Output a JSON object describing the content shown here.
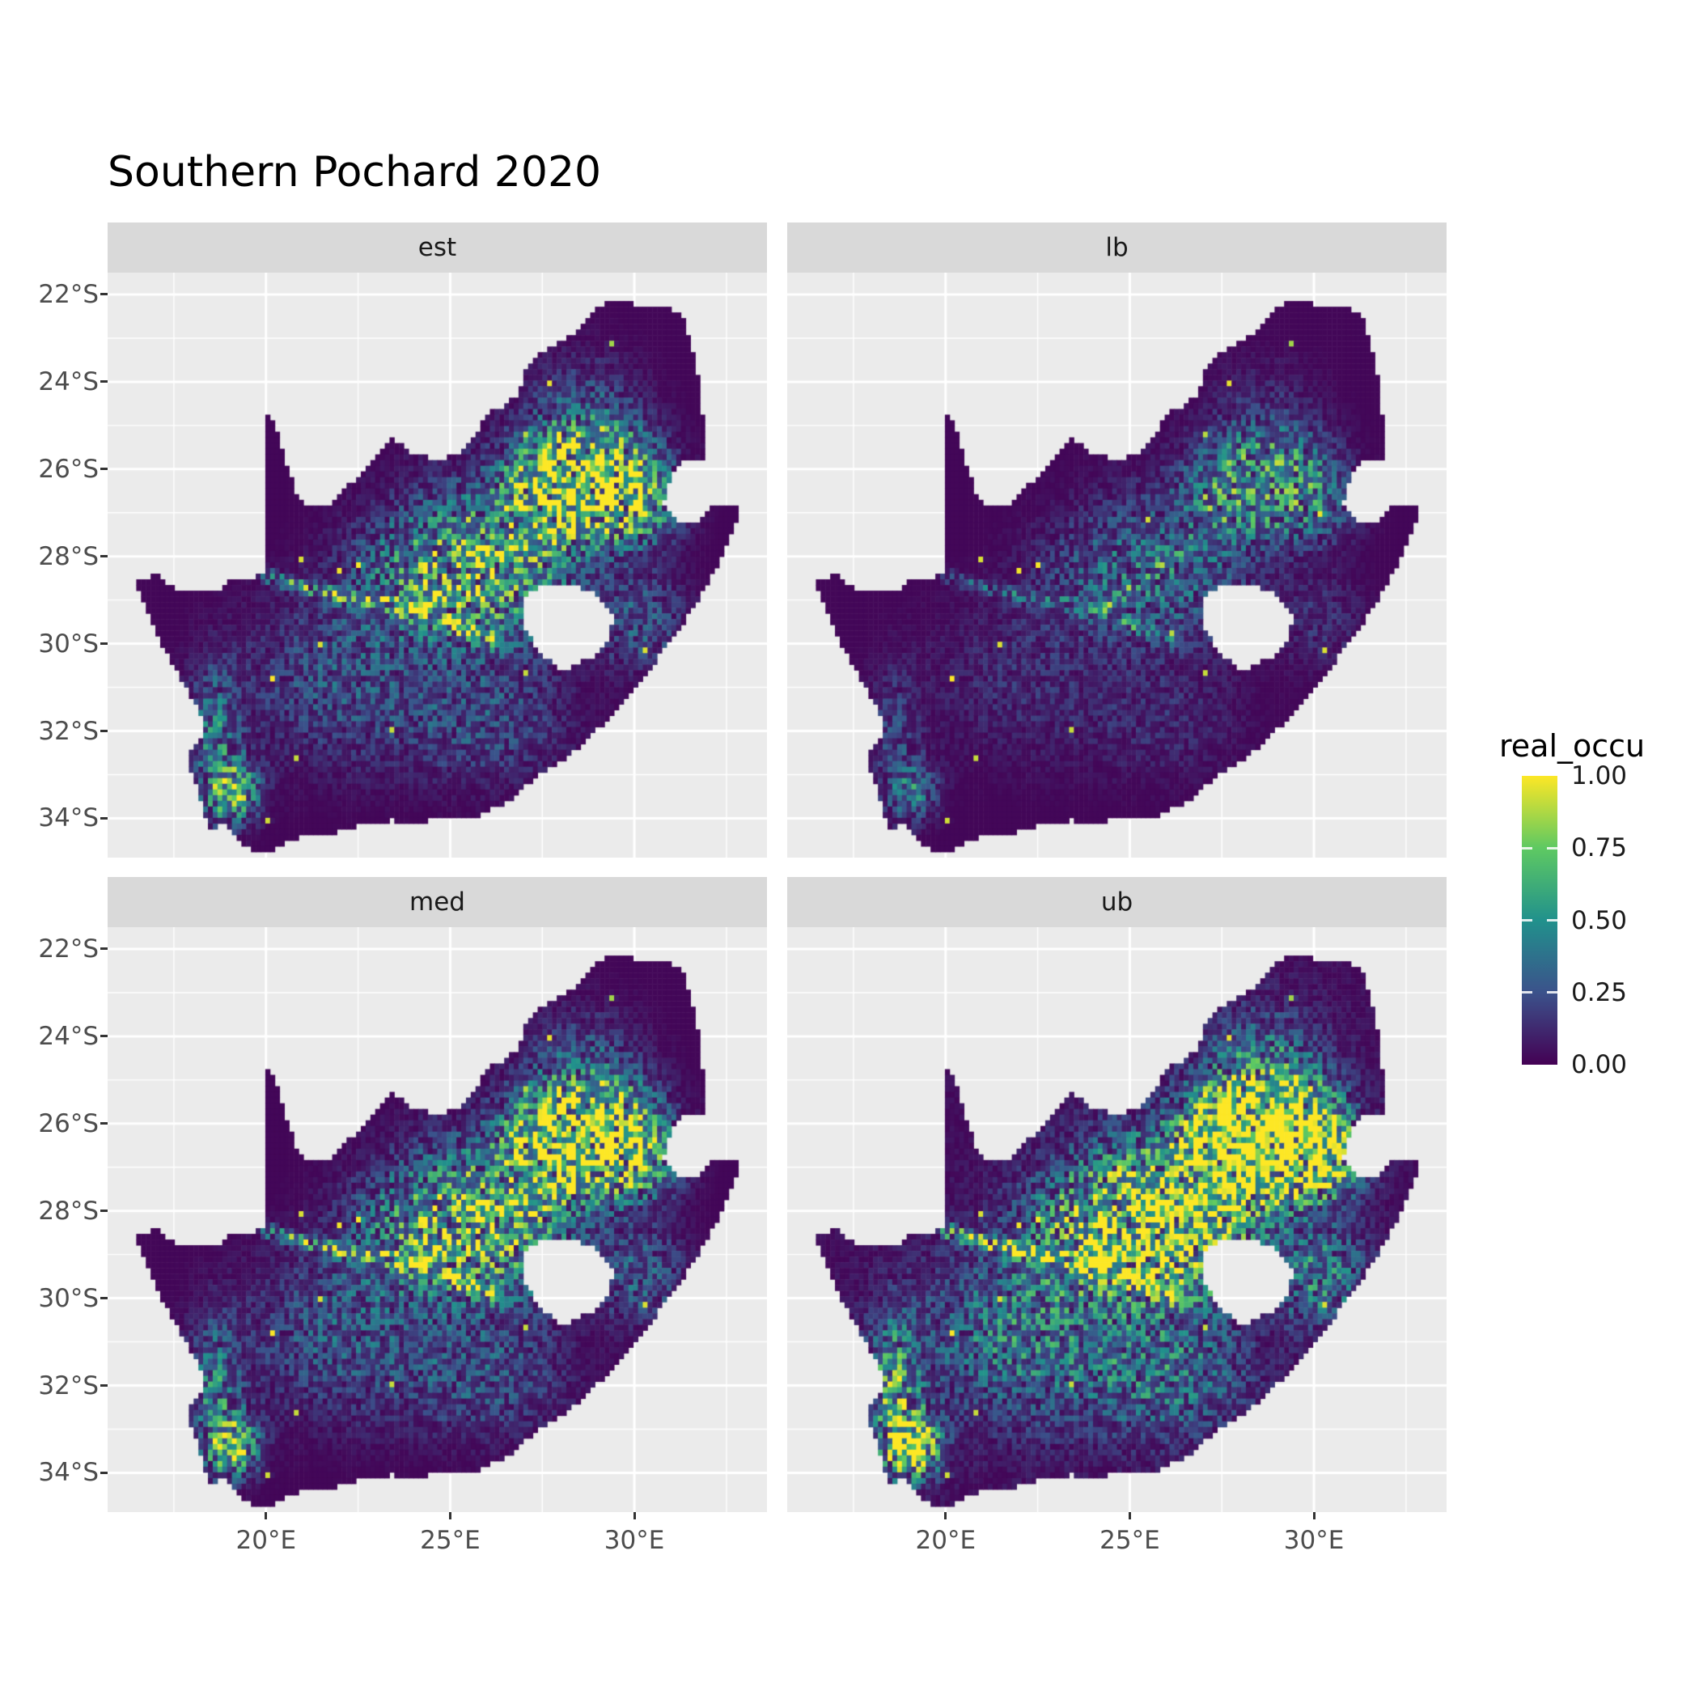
{
  "chart_data": {
    "type": "heatmap",
    "title": "Southern Pochard 2020",
    "facets": [
      {
        "label": "est",
        "scale": 1.0
      },
      {
        "label": "lb",
        "scale": 0.52
      },
      {
        "label": "med",
        "scale": 1.08
      },
      {
        "label": "ub",
        "scale": 1.5,
        "offset": 0.04
      }
    ],
    "x_ticks": [
      {
        "label": "20°E",
        "value": 20
      },
      {
        "label": "25°E",
        "value": 25
      },
      {
        "label": "30°E",
        "value": 30
      }
    ],
    "y_ticks": [
      {
        "label": "22°S",
        "value": -22
      },
      {
        "label": "24°S",
        "value": -24
      },
      {
        "label": "26°S",
        "value": -26
      },
      {
        "label": "28°S",
        "value": -28
      },
      {
        "label": "30°S",
        "value": -30
      },
      {
        "label": "32°S",
        "value": -32
      },
      {
        "label": "34°S",
        "value": -34
      }
    ],
    "extent": {
      "lon_min": 15.7,
      "lon_max": 33.6,
      "lat_min": -34.9,
      "lat_max": -21.5
    },
    "legend": {
      "title": "real_occu",
      "ticks": [
        {
          "label": "1.00",
          "value": 1.0
        },
        {
          "label": "0.75",
          "value": 0.75
        },
        {
          "label": "0.50",
          "value": 0.5
        },
        {
          "label": "0.25",
          "value": 0.25
        },
        {
          "label": "0.00",
          "value": 0.0
        }
      ]
    },
    "colormap": {
      "name": "viridis",
      "stops": [
        {
          "t": 0.0,
          "color": "#440154"
        },
        {
          "t": 0.25,
          "color": "#3B528B"
        },
        {
          "t": 0.5,
          "color": "#21918C"
        },
        {
          "t": 0.75,
          "color": "#5EC962"
        },
        {
          "t": 1.0,
          "color": "#FDE725"
        }
      ]
    },
    "colors": {
      "panel_bg": "#EBEBEB",
      "strip_bg": "#D9D9D9",
      "grid": "#FFFFFF",
      "axis_text": "#4D4D4D",
      "strip_text": "#1A1A1A",
      "background": "#FFFFFF"
    },
    "map": {
      "region": "South Africa",
      "cell_size_deg": 0.13,
      "outline": [
        [
          16.45,
          -28.58
        ],
        [
          17.05,
          -28.4
        ],
        [
          17.45,
          -28.7
        ],
        [
          17.95,
          -28.78
        ],
        [
          18.55,
          -28.85
        ],
        [
          19.1,
          -28.52
        ],
        [
          19.55,
          -28.5
        ],
        [
          19.99,
          -28.42
        ],
        [
          19.99,
          -24.75
        ],
        [
          20.2,
          -24.92
        ],
        [
          20.4,
          -25.45
        ],
        [
          20.6,
          -25.95
        ],
        [
          20.8,
          -26.5
        ],
        [
          20.95,
          -26.75
        ],
        [
          21.65,
          -26.85
        ],
        [
          22.15,
          -26.4
        ],
        [
          22.6,
          -26.15
        ],
        [
          23.0,
          -25.65
        ],
        [
          23.45,
          -25.3
        ],
        [
          24.0,
          -25.65
        ],
        [
          24.75,
          -25.8
        ],
        [
          25.35,
          -25.6
        ],
        [
          25.8,
          -25.15
        ],
        [
          25.95,
          -24.7
        ],
        [
          26.45,
          -24.6
        ],
        [
          26.85,
          -24.25
        ],
        [
          27.1,
          -23.65
        ],
        [
          27.65,
          -23.2
        ],
        [
          28.3,
          -22.95
        ],
        [
          28.95,
          -22.3
        ],
        [
          29.4,
          -22.15
        ],
        [
          29.9,
          -22.2
        ],
        [
          30.5,
          -22.3
        ],
        [
          31.1,
          -22.35
        ],
        [
          31.3,
          -22.4
        ],
        [
          31.55,
          -23.2
        ],
        [
          31.75,
          -23.9
        ],
        [
          31.85,
          -24.7
        ],
        [
          31.95,
          -25.45
        ],
        [
          31.97,
          -25.85
        ],
        [
          31.3,
          -25.75
        ],
        [
          30.95,
          -26.25
        ],
        [
          30.78,
          -26.8
        ],
        [
          31.05,
          -27.15
        ],
        [
          31.5,
          -27.3
        ],
        [
          31.95,
          -27.05
        ],
        [
          32.15,
          -26.85
        ],
        [
          32.89,
          -26.86
        ],
        [
          32.55,
          -27.65
        ],
        [
          32.2,
          -28.3
        ],
        [
          31.7,
          -29.05
        ],
        [
          31.05,
          -29.85
        ],
        [
          30.4,
          -30.6
        ],
        [
          29.7,
          -31.35
        ],
        [
          28.9,
          -32.05
        ],
        [
          28.1,
          -32.65
        ],
        [
          27.35,
          -33.05
        ],
        [
          26.5,
          -33.65
        ],
        [
          25.7,
          -33.95
        ],
        [
          25.05,
          -33.98
        ],
        [
          24.2,
          -34.08
        ],
        [
          23.4,
          -34.05
        ],
        [
          22.55,
          -34.15
        ],
        [
          21.7,
          -34.4
        ],
        [
          20.8,
          -34.45
        ],
        [
          20.0,
          -34.82
        ],
        [
          19.4,
          -34.62
        ],
        [
          18.85,
          -34.15
        ],
        [
          18.45,
          -34.25
        ],
        [
          18.3,
          -33.9
        ],
        [
          18.1,
          -33.15
        ],
        [
          17.85,
          -32.65
        ],
        [
          18.3,
          -32.05
        ],
        [
          18.2,
          -31.55
        ],
        [
          17.65,
          -30.75
        ],
        [
          17.1,
          -29.95
        ],
        [
          16.8,
          -29.35
        ]
      ],
      "lesotho_hole": [
        [
          27.05,
          -28.9
        ],
        [
          27.6,
          -28.58
        ],
        [
          28.2,
          -28.68
        ],
        [
          28.75,
          -28.75
        ],
        [
          29.2,
          -29.08
        ],
        [
          29.42,
          -29.38
        ],
        [
          29.28,
          -29.9
        ],
        [
          28.85,
          -30.3
        ],
        [
          28.1,
          -30.62
        ],
        [
          27.45,
          -30.28
        ],
        [
          27.02,
          -29.65
        ]
      ],
      "hotspots": [
        [
          28.9,
          -26.2,
          1.1,
          0.75,
          1.05
        ],
        [
          27.7,
          -26.6,
          1.0,
          0.8,
          0.6
        ],
        [
          29.9,
          -26.9,
          0.9,
          0.7,
          0.5
        ],
        [
          26.6,
          -28.6,
          1.4,
          1.1,
          0.45
        ],
        [
          25.2,
          -27.8,
          1.6,
          1.2,
          0.35
        ],
        [
          28.6,
          -24.8,
          1.2,
          1.0,
          0.28
        ],
        [
          22.0,
          -30.8,
          2.0,
          1.4,
          0.28
        ],
        [
          19.1,
          -33.4,
          0.5,
          0.5,
          0.75
        ],
        [
          18.6,
          -32.0,
          0.5,
          1.0,
          0.4
        ],
        [
          30.2,
          -29.5,
          0.9,
          0.8,
          0.3
        ],
        [
          26.0,
          -31.8,
          1.6,
          1.0,
          0.25
        ],
        [
          24.0,
          -28.6,
          1.3,
          0.9,
          0.3
        ]
      ],
      "rivers": [
        [
          [
            19.99,
            -28.45
          ],
          [
            21.2,
            -28.75
          ],
          [
            22.2,
            -28.95
          ],
          [
            23.3,
            -29.1
          ],
          [
            24.3,
            -29.35
          ],
          [
            25.3,
            -29.65
          ],
          [
            26.1,
            -29.95
          ]
        ],
        [
          [
            24.3,
            -29.2
          ],
          [
            25.4,
            -28.6
          ],
          [
            26.4,
            -27.9
          ],
          [
            27.3,
            -27.2
          ],
          [
            28.0,
            -26.8
          ]
        ]
      ]
    }
  }
}
